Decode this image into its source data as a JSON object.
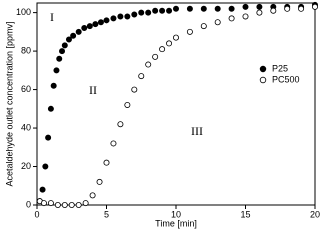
{
  "chart_data": {
    "type": "scatter",
    "xlabel": "Time [min]",
    "ylabel": "Acetaldehyde outlet concentration [ppmv]",
    "xlim": [
      0,
      20
    ],
    "ylim": [
      0,
      105
    ],
    "xticks": [
      0,
      5,
      10,
      15,
      20
    ],
    "yticks": [
      0,
      20,
      40,
      60,
      80,
      100
    ],
    "legend": "upper right",
    "annotations": [
      "I",
      "II",
      "III"
    ],
    "series": [
      {
        "name": "P25",
        "color": "#000000",
        "filled": true,
        "x": [
          0.2,
          0.4,
          0.6,
          0.8,
          1.0,
          1.2,
          1.4,
          1.6,
          1.8,
          2.0,
          2.3,
          2.6,
          3.0,
          3.4,
          3.8,
          4.2,
          4.6,
          5.0,
          5.5,
          6,
          6.5,
          7,
          7.5,
          8,
          8.5,
          9,
          9.5,
          10,
          11,
          12,
          13,
          14,
          15,
          16,
          17,
          18,
          19,
          20
        ],
        "values": [
          2,
          8,
          20,
          35,
          50,
          62,
          70,
          76,
          80,
          83,
          86,
          88,
          90,
          92,
          93,
          94,
          95,
          96,
          97,
          98,
          98,
          99,
          100,
          100,
          101,
          101,
          101,
          102,
          102,
          102,
          102,
          102,
          103,
          103,
          103,
          103,
          103,
          104
        ]
      },
      {
        "name": "PC500",
        "color": "#000000",
        "filled": false,
        "x": [
          0.2,
          0.5,
          1,
          1.5,
          2,
          2.5,
          3,
          3.5,
          4,
          4.5,
          5,
          5.5,
          6,
          6.5,
          7,
          7.5,
          8,
          8.5,
          9,
          9.5,
          10,
          11,
          12,
          13,
          14,
          15,
          16,
          17,
          18,
          19,
          20
        ],
        "values": [
          2,
          1,
          1,
          0,
          0,
          0,
          0,
          1,
          5,
          12,
          22,
          32,
          42,
          52,
          60,
          67,
          73,
          77,
          81,
          84,
          87,
          90,
          93,
          95,
          97,
          98,
          100,
          101,
          102,
          102,
          103
        ]
      }
    ]
  }
}
